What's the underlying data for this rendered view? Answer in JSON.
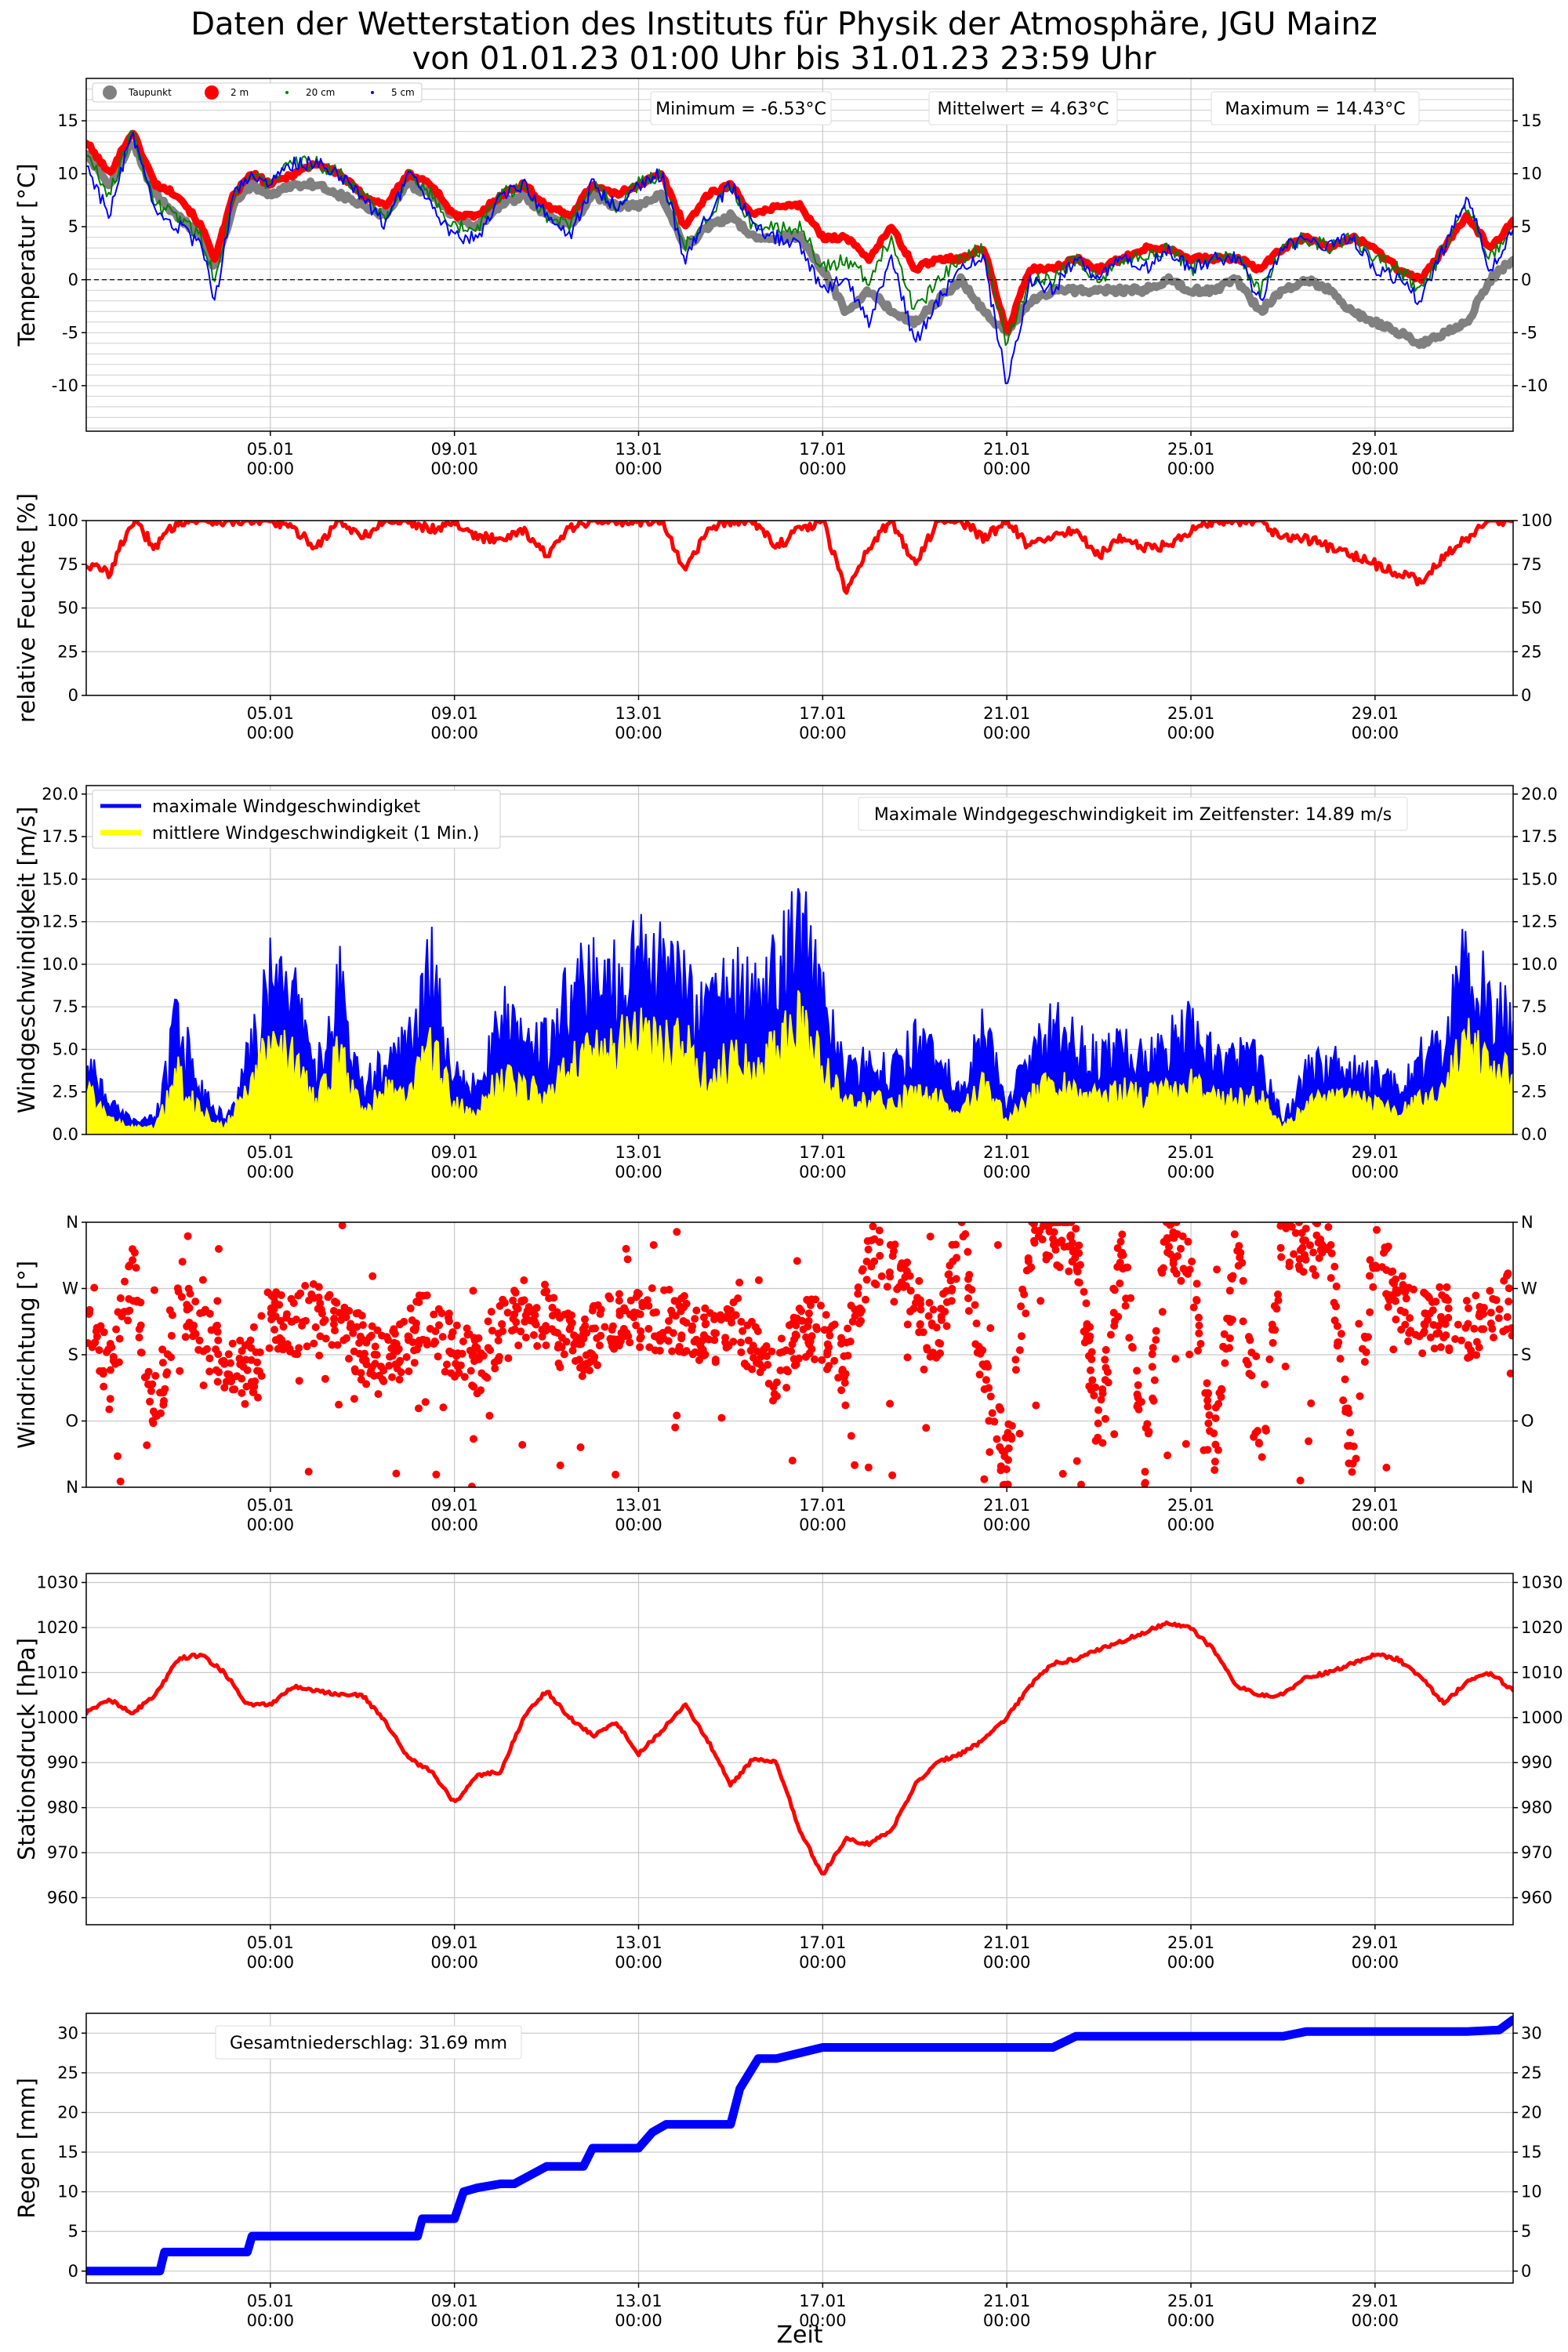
{
  "title": {
    "line1": "Daten der Wetterstation des Instituts für Physik der Atmosphäre, JGU Mainz",
    "line2": "von 01.01.23 01:00 Uhr bis 31.01.23 23:59 Uhr"
  },
  "x_axis": {
    "label": "Zeit",
    "range_days": [
      1.0,
      32.0
    ],
    "ticks": [
      {
        "day": 5,
        "date": "05.01",
        "time": "00:00"
      },
      {
        "day": 9,
        "date": "09.01",
        "time": "00:00"
      },
      {
        "day": 13,
        "date": "13.01",
        "time": "00:00"
      },
      {
        "day": 17,
        "date": "17.01",
        "time": "00:00"
      },
      {
        "day": 21,
        "date": "21.01",
        "time": "00:00"
      },
      {
        "day": 25,
        "date": "25.01",
        "time": "00:00"
      },
      {
        "day": 29,
        "date": "29.01",
        "time": "00:00"
      }
    ]
  },
  "colors": {
    "red": "#ff0000",
    "blue": "#0000ff",
    "green": "#008000",
    "gray": "#808080",
    "yellow": "#ffff00"
  },
  "chart_data": [
    {
      "type": "line",
      "ylabel": "Temperatur [°C]",
      "ylim": [
        -14.3,
        19
      ],
      "yticks": [
        15,
        10,
        5,
        0,
        -5,
        -10
      ],
      "grid": "dense horizontal every 1 °C, vertical at date ticks",
      "zero_line": "dashed",
      "legend": {
        "placement": "top-left",
        "entries": [
          "Taupunkt",
          "2 m",
          "20 cm",
          "5 cm"
        ]
      },
      "annotations": [
        "Minimum = -6.53°C",
        "Mittelwert = 4.63°C",
        "Maximum = 14.43°C"
      ],
      "x": [
        1.0,
        1.5,
        2.0,
        2.5,
        3.0,
        3.5,
        3.8,
        4.2,
        4.6,
        5.0,
        5.5,
        6.0,
        6.5,
        7.0,
        7.5,
        8.0,
        8.5,
        9.0,
        9.5,
        10.0,
        10.5,
        11.0,
        11.5,
        12.0,
        12.5,
        13.0,
        13.5,
        14.0,
        14.5,
        15.0,
        15.5,
        16.0,
        16.5,
        17.0,
        17.5,
        18.0,
        18.5,
        19.0,
        19.5,
        20.0,
        20.5,
        21.0,
        21.5,
        22.0,
        22.5,
        23.0,
        23.5,
        24.0,
        24.5,
        25.0,
        25.5,
        26.0,
        26.5,
        27.0,
        27.5,
        28.0,
        28.5,
        29.0,
        29.5,
        30.0,
        30.5,
        31.0,
        31.5,
        32.0
      ],
      "series": [
        {
          "name": "Taupunkt",
          "color": "gray",
          "values": [
            12,
            9,
            13,
            8,
            6,
            4,
            1,
            7,
            9,
            8,
            9,
            9,
            8,
            7,
            6,
            9,
            8,
            6,
            5,
            7,
            8,
            6,
            5,
            8,
            7,
            7,
            8,
            3,
            5,
            6,
            4,
            4,
            4,
            1,
            -3,
            -1,
            -3,
            -4,
            -2,
            0,
            -3,
            -5,
            -2,
            -1,
            -1,
            -1,
            -1,
            -1,
            0,
            -1,
            -1,
            0,
            -3,
            -1,
            0,
            -1,
            -3,
            -4,
            -5,
            -6,
            -5,
            -4,
            0,
            2
          ]
        },
        {
          "name": "2 m",
          "color": "red",
          "values": [
            13,
            10,
            14,
            9,
            8,
            5,
            2,
            8,
            10,
            9,
            10,
            11,
            10,
            8,
            7,
            10,
            9,
            6,
            6,
            8,
            9,
            7,
            6,
            9,
            8,
            9,
            10,
            5,
            8,
            9,
            6,
            7,
            7,
            4,
            4,
            2,
            5,
            1,
            2,
            2,
            3,
            -5,
            1,
            1,
            2,
            1,
            2,
            3,
            3,
            2,
            2,
            2,
            1,
            3,
            4,
            3,
            4,
            3,
            1,
            0,
            3,
            6,
            3,
            5.5
          ]
        },
        {
          "name": "20 cm",
          "color": "green",
          "values": [
            12,
            8,
            14,
            7,
            6,
            4,
            0,
            8,
            10,
            9,
            11,
            11,
            10,
            8,
            6,
            10,
            8,
            5,
            5,
            8,
            9,
            6,
            5,
            9,
            7,
            9,
            10,
            3,
            6,
            9,
            5,
            5,
            5,
            1,
            2,
            0,
            4,
            -3,
            0,
            2,
            3,
            -6,
            0,
            0,
            2,
            0,
            2,
            2,
            3,
            1,
            2,
            2,
            -1,
            3,
            4,
            3,
            4,
            2,
            1,
            -1,
            3,
            7,
            2,
            5
          ]
        },
        {
          "name": "5 cm",
          "color": "blue",
          "values": [
            11,
            6,
            14,
            6,
            5,
            3,
            -2,
            8,
            10,
            9,
            11,
            11,
            10,
            8,
            5,
            10,
            7,
            4,
            4,
            8,
            9,
            6,
            4,
            9,
            7,
            9,
            10,
            2,
            6,
            9,
            5,
            4,
            3,
            -1,
            0,
            -4,
            2,
            -6,
            -2,
            1,
            2,
            -10,
            0,
            -1,
            2,
            0,
            2,
            1,
            3,
            1,
            2,
            2,
            -2,
            3,
            4,
            3,
            4,
            1,
            0,
            -2,
            3,
            8,
            1,
            4.5
          ]
        }
      ]
    },
    {
      "type": "line",
      "ylabel": "relative Feuchte [%]",
      "ylim": [
        0,
        100
      ],
      "yticks": [
        100,
        75,
        50,
        25,
        0
      ],
      "x": [
        1.0,
        1.5,
        2.0,
        2.5,
        3.0,
        3.5,
        4.0,
        4.5,
        5.0,
        5.5,
        6.0,
        6.5,
        7.0,
        7.5,
        8.0,
        8.5,
        9.0,
        9.5,
        10.0,
        10.5,
        11.0,
        11.5,
        12.0,
        12.5,
        13.0,
        13.5,
        14.0,
        14.5,
        15.0,
        15.5,
        16.0,
        16.5,
        17.0,
        17.5,
        18.0,
        18.5,
        19.0,
        19.5,
        20.0,
        20.5,
        21.0,
        21.5,
        22.0,
        22.5,
        23.0,
        23.5,
        24.0,
        24.5,
        25.0,
        25.5,
        26.0,
        26.5,
        27.0,
        27.5,
        28.0,
        28.5,
        29.0,
        29.5,
        30.0,
        30.5,
        31.0,
        31.5,
        32.0
      ],
      "series": [
        {
          "name": "relative Feuchte",
          "color": "red",
          "values": [
            75,
            70,
            100,
            85,
            100,
            100,
            100,
            100,
            100,
            95,
            85,
            100,
            90,
            100,
            100,
            95,
            100,
            90,
            90,
            95,
            80,
            95,
            100,
            100,
            100,
            100,
            70,
            95,
            100,
            100,
            85,
            95,
            100,
            60,
            85,
            100,
            75,
            100,
            100,
            90,
            100,
            85,
            90,
            95,
            80,
            90,
            85,
            85,
            95,
            100,
            100,
            100,
            90,
            90,
            85,
            80,
            75,
            70,
            65,
            80,
            90,
            100,
            100
          ]
        }
      ]
    },
    {
      "type": "area",
      "ylabel": "Windgeschwindigkeit [m/s]",
      "ylim": [
        0,
        20.5
      ],
      "yticks": [
        20.0,
        17.5,
        15.0,
        12.5,
        10.0,
        7.5,
        5.0,
        2.5,
        0.0
      ],
      "legend": {
        "placement": "top-left",
        "entries": [
          "maximale Windgeschwindigket",
          "mittlere Windgeschwindigkeit (1 Min.)"
        ]
      },
      "annotation": "Maximale Windgegeschwindigkeit im Zeitfenster: 14.89 m/s",
      "x": [
        1.0,
        1.5,
        2.0,
        2.5,
        3.0,
        3.5,
        4.0,
        4.5,
        5.0,
        5.5,
        6.0,
        6.5,
        7.0,
        7.5,
        8.0,
        8.5,
        9.0,
        9.5,
        10.0,
        10.5,
        11.0,
        11.5,
        12.0,
        12.5,
        13.0,
        13.5,
        14.0,
        14.5,
        15.0,
        15.5,
        16.0,
        16.5,
        17.0,
        17.5,
        18.0,
        18.5,
        19.0,
        19.5,
        20.0,
        20.5,
        21.0,
        21.5,
        22.0,
        22.5,
        23.0,
        23.5,
        24.0,
        24.5,
        25.0,
        25.5,
        26.0,
        26.5,
        27.0,
        27.5,
        28.0,
        28.5,
        29.0,
        29.5,
        30.0,
        30.5,
        31.0,
        31.5,
        32.0
      ],
      "series": [
        {
          "name": "maximale Windgeschwindigket",
          "color": "blue",
          "values": [
            5,
            2,
            1,
            1,
            8,
            3,
            1,
            5,
            11,
            9,
            4,
            10,
            3,
            5,
            6,
            11,
            4,
            3,
            8,
            6,
            6,
            10,
            11,
            10,
            12,
            11,
            10,
            8,
            10,
            9,
            11,
            14,
            9,
            4,
            5,
            4,
            6,
            5,
            3,
            7,
            2,
            5,
            7,
            6,
            5,
            6,
            5,
            6,
            7,
            5,
            5,
            5,
            1,
            4,
            5,
            5,
            4,
            3,
            5,
            6,
            12,
            9,
            7
          ]
        },
        {
          "name": "mittlere Windgeschwindigkeit (1 Min.)",
          "color": "yellow",
          "values": [
            3,
            1,
            0.5,
            0.5,
            4,
            1.5,
            0.5,
            3,
            6,
            5,
            2,
            6,
            1.5,
            3,
            3,
            6,
            2,
            1.5,
            4,
            3,
            3,
            5,
            6,
            6,
            7,
            6,
            6,
            4,
            5,
            5,
            6,
            8,
            5,
            2,
            2.5,
            2,
            3,
            2.5,
            1.5,
            3.5,
            1,
            2.5,
            3.5,
            3,
            2.5,
            3,
            2.5,
            3,
            3.5,
            2.5,
            2.5,
            2.5,
            0.5,
            2,
            2.5,
            2.5,
            2,
            1.5,
            2.5,
            3,
            7,
            5,
            4
          ]
        }
      ]
    },
    {
      "type": "scatter",
      "ylabel": "Windrichtung [°]",
      "ylim": [
        0,
        360
      ],
      "ytick_labels": [
        "N",
        "W",
        "S",
        "O",
        "N"
      ],
      "ytick_values": [
        360,
        270,
        180,
        90,
        0
      ],
      "x": [
        1.0,
        1.5,
        2.0,
        2.5,
        3.0,
        3.5,
        4.0,
        4.5,
        5.0,
        5.5,
        6.0,
        6.5,
        7.0,
        7.5,
        8.0,
        8.5,
        9.0,
        9.5,
        10.0,
        10.5,
        11.0,
        11.5,
        12.0,
        12.5,
        13.0,
        13.5,
        14.0,
        14.5,
        15.0,
        15.5,
        16.0,
        16.5,
        17.0,
        17.5,
        18.0,
        18.5,
        19.0,
        19.5,
        20.0,
        20.5,
        21.0,
        21.5,
        22.0,
        22.5,
        23.0,
        23.5,
        24.0,
        24.5,
        25.0,
        25.5,
        26.0,
        26.5,
        27.0,
        27.5,
        28.0,
        28.5,
        29.0,
        29.5,
        30.0,
        30.5,
        31.0,
        31.5,
        32.0
      ],
      "series": [
        {
          "name": "Windrichtung",
          "color": "red",
          "values": [
            220,
            150,
            300,
            100,
            250,
            200,
            180,
            150,
            230,
            220,
            240,
            210,
            190,
            160,
            200,
            230,
            180,
            170,
            210,
            240,
            230,
            190,
            200,
            230,
            220,
            230,
            220,
            200,
            210,
            200,
            150,
            220,
            210,
            150,
            320,
            300,
            250,
            200,
            340,
            150,
            30,
            330,
            340,
            350,
            60,
            330,
            40,
            350,
            300,
            40,
            330,
            30,
            350,
            320,
            340,
            30,
            330,
            250,
            220,
            230,
            210,
            240,
            250
          ]
        }
      ]
    },
    {
      "type": "line",
      "ylabel": "Stationsdruck [hPa]",
      "ylim": [
        954,
        1032
      ],
      "yticks": [
        1030,
        1020,
        1010,
        1000,
        990,
        980,
        970,
        960
      ],
      "x": [
        1.0,
        1.5,
        2.0,
        2.5,
        3.0,
        3.5,
        4.0,
        4.5,
        5.0,
        5.5,
        6.0,
        6.5,
        7.0,
        7.5,
        8.0,
        8.5,
        9.0,
        9.5,
        10.0,
        10.5,
        11.0,
        11.5,
        12.0,
        12.5,
        13.0,
        13.5,
        14.0,
        14.5,
        15.0,
        15.5,
        16.0,
        16.5,
        17.0,
        17.5,
        18.0,
        18.5,
        19.0,
        19.5,
        20.0,
        20.5,
        21.0,
        21.5,
        22.0,
        22.5,
        23.0,
        23.5,
        24.0,
        24.5,
        25.0,
        25.5,
        26.0,
        26.5,
        27.0,
        27.5,
        28.0,
        28.5,
        29.0,
        29.5,
        30.0,
        30.5,
        31.0,
        31.5,
        32.0
      ],
      "series": [
        {
          "name": "Stationsdruck",
          "color": "red",
          "values": [
            1001,
            1004,
            1001,
            1005,
            1013,
            1014,
            1010,
            1003,
            1003,
            1007,
            1006,
            1005,
            1005,
            999,
            991,
            988,
            981,
            987,
            988,
            1000,
            1006,
            1000,
            996,
            999,
            992,
            997,
            1003,
            995,
            985,
            991,
            990,
            975,
            965,
            973,
            972,
            975,
            985,
            990,
            992,
            995,
            1000,
            1007,
            1012,
            1013,
            1015,
            1017,
            1019,
            1021,
            1020,
            1015,
            1007,
            1005,
            1005,
            1009,
            1010,
            1012,
            1014,
            1013,
            1009,
            1003,
            1008,
            1010,
            1006
          ]
        }
      ]
    },
    {
      "type": "line",
      "ylabel": "Regen [mm]",
      "ylim": [
        -1.5,
        32.5
      ],
      "yticks": [
        30,
        25,
        20,
        15,
        10,
        5,
        0
      ],
      "annotation": "Gesamtniederschlag: 31.69 mm",
      "x": [
        1.0,
        2.6,
        2.7,
        4.5,
        4.6,
        8.2,
        8.3,
        9.0,
        9.2,
        9.5,
        10.0,
        10.3,
        11.0,
        11.8,
        12.0,
        13.0,
        13.3,
        13.6,
        14.0,
        15.0,
        15.2,
        15.6,
        16.0,
        16.5,
        17.0,
        20.0,
        22.0,
        22.5,
        25.0,
        27.0,
        27.5,
        31.0,
        31.7,
        32.0
      ],
      "series": [
        {
          "name": "Regen",
          "color": "blue",
          "values": [
            0,
            0,
            2.4,
            2.4,
            4.4,
            4.4,
            6.6,
            6.6,
            10,
            10.5,
            11,
            11,
            13.2,
            13.2,
            15.5,
            15.5,
            17.5,
            18.5,
            18.5,
            18.5,
            23,
            26.8,
            26.8,
            27.5,
            28.2,
            28.2,
            28.2,
            29.6,
            29.6,
            29.6,
            30.2,
            30.2,
            30.4,
            31.69
          ]
        }
      ]
    }
  ]
}
